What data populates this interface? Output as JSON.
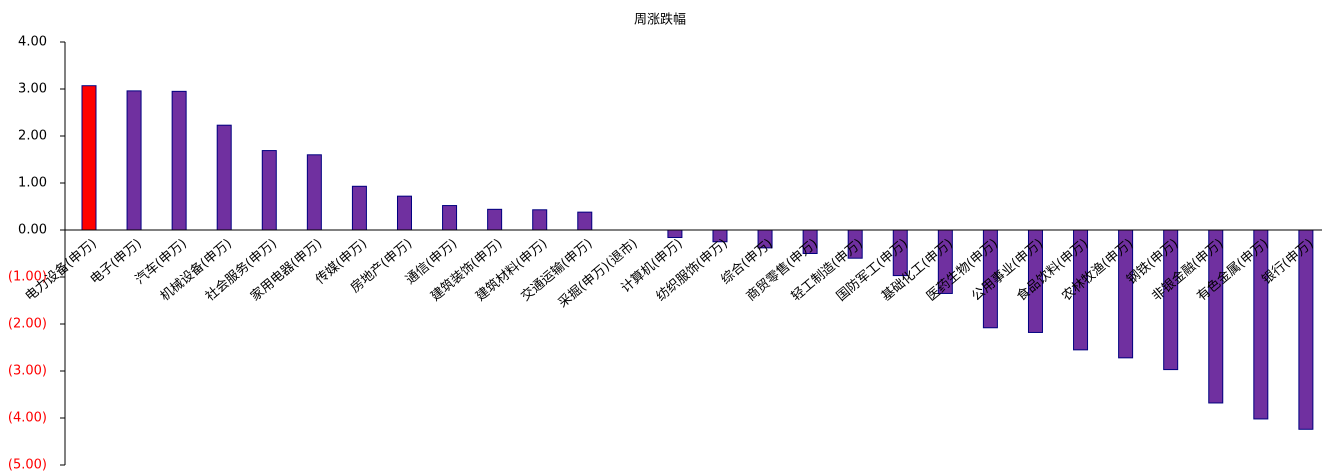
{
  "chart_data": {
    "type": "bar",
    "title": "周涨跌幅",
    "categories": [
      "电力设备(申万)",
      "电子(申万)",
      "汽车(申万)",
      "机械设备(申万)",
      "社会服务(申万)",
      "家用电器(申万)",
      "传媒(申万)",
      "房地产(申万)",
      "通信(申万)",
      "建筑装饰(申万)",
      "建筑材料(申万)",
      "交通运输(申万)",
      "采掘(申万)(退市)",
      "计算机(申万)",
      "纺织服饰(申万)",
      "综合(申万)",
      "商贸零售(申万)",
      "轻工制造(申万)",
      "国防军工(申万)",
      "基础化工(申万)",
      "医药生物(申万)",
      "公用事业(申万)",
      "食品饮料(申万)",
      "农林牧渔(申万)",
      "钢铁(申万)",
      "非银金融(申万)",
      "有色金属(申万)",
      "银行(申万)"
    ],
    "values": [
      3.07,
      2.96,
      2.95,
      2.23,
      1.69,
      1.6,
      0.93,
      0.72,
      0.52,
      0.44,
      0.43,
      0.38,
      0,
      -0.16,
      -0.25,
      -0.38,
      -0.5,
      -0.6,
      -0.97,
      -1.35,
      -2.08,
      -2.18,
      -2.55,
      -2.72,
      -2.97,
      -3.68,
      -4.02,
      -4.24
    ],
    "colors": [
      "#ff0000",
      "#7030a0",
      "#7030a0",
      "#7030a0",
      "#7030a0",
      "#7030a0",
      "#7030a0",
      "#7030a0",
      "#7030a0",
      "#7030a0",
      "#7030a0",
      "#7030a0",
      "#7030a0",
      "#7030a0",
      "#7030a0",
      "#7030a0",
      "#7030a0",
      "#7030a0",
      "#7030a0",
      "#7030a0",
      "#7030a0",
      "#7030a0",
      "#7030a0",
      "#7030a0",
      "#7030a0",
      "#7030a0",
      "#7030a0",
      "#7030a0"
    ],
    "border_color": "#000080",
    "ylim": [
      -5,
      4
    ],
    "yticks": [
      {
        "value": 4,
        "label": "4.00"
      },
      {
        "value": 3,
        "label": "3.00"
      },
      {
        "value": 2,
        "label": "2.00"
      },
      {
        "value": 1,
        "label": "1.00"
      },
      {
        "value": 0,
        "label": "0.00"
      },
      {
        "value": -1,
        "label": "(1.00)"
      },
      {
        "value": -2,
        "label": "(2.00)"
      },
      {
        "value": -3,
        "label": "(3.00)"
      },
      {
        "value": -4,
        "label": "(4.00)"
      },
      {
        "value": -5,
        "label": "(5.00)"
      }
    ],
    "negative_tick_color": "#ff0000",
    "grid": false
  }
}
